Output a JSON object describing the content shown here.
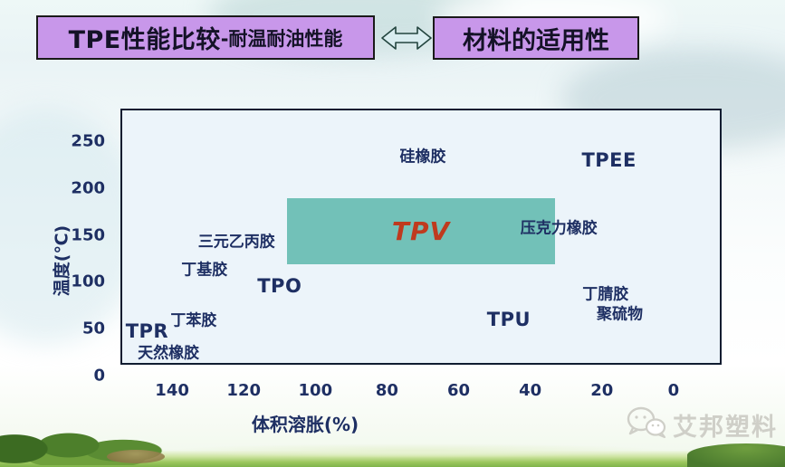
{
  "slide": {
    "title_bar": {
      "left_box": {
        "main": "TPE性能比较",
        "sub": "-耐温耐油性能"
      },
      "right_box": {
        "text": "材料的适用性"
      },
      "arrow_icon": "double-horizontal-arrow"
    },
    "watermark": {
      "text": "艾邦塑料",
      "icon": "wechat-logo"
    }
  },
  "colors": {
    "title_box_fill": "#c897ea",
    "title_box_border": "#1a1a1a",
    "plot_bg": "#ecf4fa",
    "plot_border": "#101c30",
    "label_navy": "#1e2f63",
    "tpv_fill": "#72c1b8",
    "tpv_text": "#bf3a1e",
    "watermark_gray": "#cfcfc8"
  },
  "chart_data": {
    "type": "scatter",
    "title": "TPE性能比较-耐温耐油性能",
    "xlabel": "体积溶胀(%)",
    "ylabel": "温度(℃)",
    "x_ticks": [
      140,
      120,
      100,
      80,
      60,
      40,
      20,
      0
    ],
    "y_ticks": [
      250,
      200,
      150,
      100,
      50,
      0
    ],
    "x_axis_reversed": true,
    "xlim": [
      150,
      -8
    ],
    "ylim": [
      0,
      265
    ],
    "grid": false,
    "legend": false,
    "points": [
      {
        "label": "硅橡胶",
        "x": 70,
        "y": 235
      },
      {
        "label": "TPEE",
        "x": 18,
        "y": 230
      },
      {
        "label": "三元乙丙胶",
        "x": 122,
        "y": 145
      },
      {
        "label": "丁基胶",
        "x": 131,
        "y": 115
      },
      {
        "label": "TPO",
        "x": 110,
        "y": 95
      },
      {
        "label": "压克力橡胶",
        "x": 32,
        "y": 159
      },
      {
        "label": "丁腈胶",
        "x": 19,
        "y": 89
      },
      {
        "label": "聚硫物",
        "x": 15,
        "y": 67
      },
      {
        "label": "TPU",
        "x": 46,
        "y": 60
      },
      {
        "label": "丁苯胶",
        "x": 134,
        "y": 61
      },
      {
        "label": "TPR",
        "x": 147,
        "y": 47
      },
      {
        "label": "天然橡胶",
        "x": 141,
        "y": 26
      }
    ],
    "region": {
      "label": "TPV",
      "x_from": 108,
      "x_to": 33,
      "y_from": 119,
      "y_to": 189
    }
  }
}
